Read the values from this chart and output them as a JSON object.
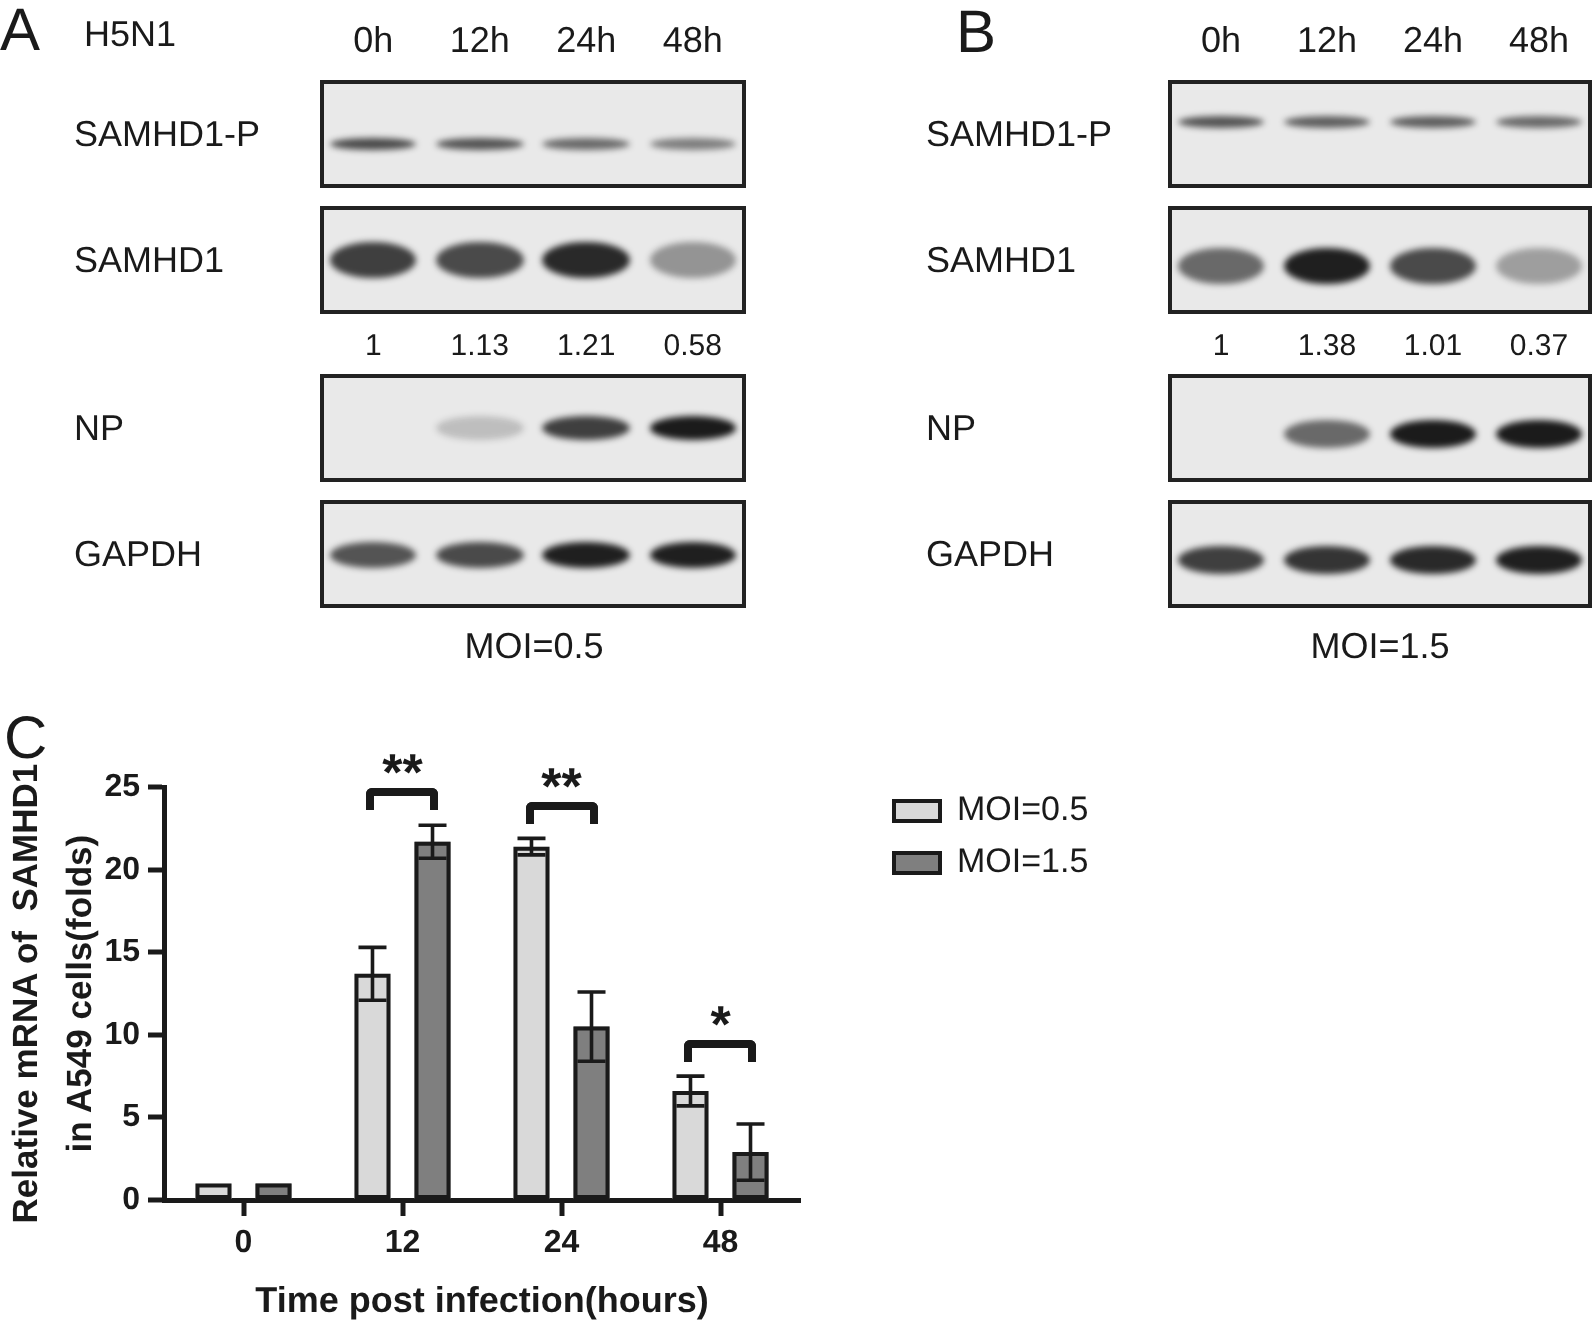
{
  "chart_data": [
    {
      "type": "other",
      "annotations": [
        "A",
        "H5N1"
      ],
      "categories": [
        "0h",
        "12h",
        "24h",
        "48h"
      ],
      "y_categories": [
        "SAMHD1-P",
        "SAMHD1",
        "NP",
        "GAPDH"
      ],
      "values": [
        1,
        1.13,
        1.21,
        0.58
      ],
      "data_labels": true,
      "xlabel": "MOI=0.5"
    },
    {
      "type": "other",
      "annotations": [
        "B"
      ],
      "categories": [
        "0h",
        "12h",
        "24h",
        "48h"
      ],
      "y_categories": [
        "SAMHD1-P",
        "SAMHD1",
        "NP",
        "GAPDH"
      ],
      "values": [
        1,
        1.38,
        1.01,
        0.37
      ],
      "data_labels": true,
      "xlabel": "MOI=1.5"
    },
    {
      "type": "bar",
      "annotations": [
        "C",
        "**",
        "**",
        "*"
      ],
      "categories": [
        "0",
        "12",
        "24",
        "48"
      ],
      "series": [
        {
          "name": "MOI=0.5",
          "color": "#d9d9d9",
          "values": [
            1,
            13.7,
            21.4,
            6.6
          ],
          "errors": [
            null,
            1.6,
            0.5,
            0.9
          ]
        },
        {
          "name": "MOI=1.5",
          "color": "#7f7f7f",
          "values": [
            1,
            21.7,
            10.5,
            2.9
          ],
          "errors": [
            null,
            1.0,
            2.1,
            1.7
          ]
        }
      ],
      "xlabel": "Time post infection(hours)",
      "ylabel": "Relative mRNA of  SAMHD1\nin A549 cells(folds)",
      "ylim": [
        0,
        25
      ],
      "yticks": [
        0,
        5,
        10,
        15,
        20,
        25
      ],
      "grid": false,
      "legend": "top right"
    }
  ]
}
